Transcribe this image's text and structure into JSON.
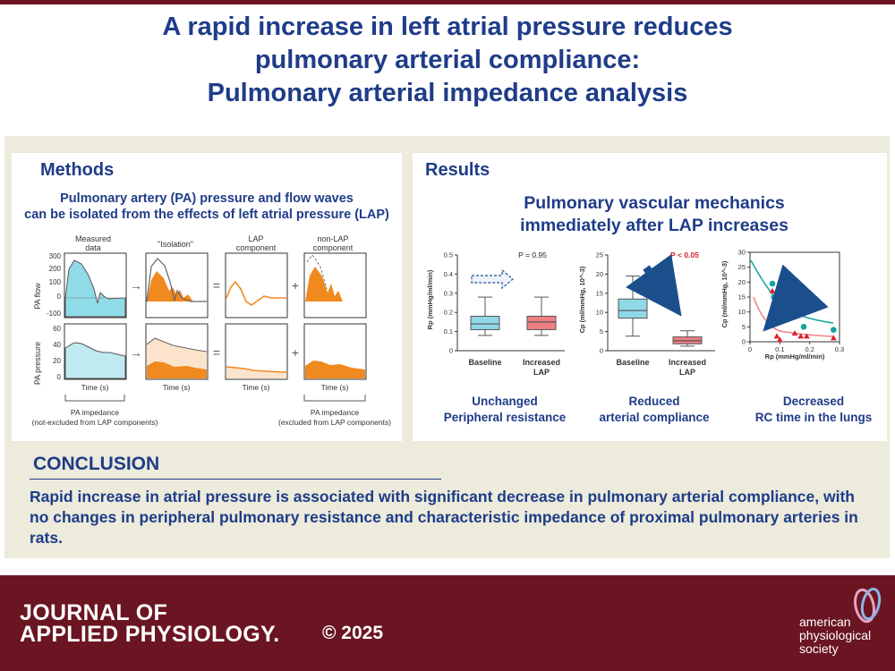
{
  "title": {
    "line1": "A rapid increase in left atrial pressure reduces",
    "line2": "pulmonary arterial compliance:",
    "line3": "Pulmonary arterial impedance analysis"
  },
  "methods": {
    "heading": "Methods",
    "subtitle_line1": "Pulmonary artery (PA) pressure and flow waves",
    "subtitle_line2": "can be isolated from the effects of left atrial pressure (LAP)",
    "col_measured_1": "Measured",
    "col_measured_2": "data",
    "col_isolation": "\"Isolation\"",
    "col_lap_1": "LAP",
    "col_lap_2": "component",
    "col_nonlap_1": "non-LAP",
    "col_nonlap_2": "component",
    "ylabel_flow": "PA flow",
    "ylabel_pressure": "PA pressure",
    "flow_ticks": [
      "300",
      "200",
      "100",
      "0",
      "-100"
    ],
    "pressure_ticks": [
      "60",
      "40",
      "20",
      "0"
    ],
    "xlabel": "Time (s)",
    "op_arrow": "→",
    "op_equals": "=",
    "op_plus": "+",
    "impedance_left_1": "PA impedance",
    "impedance_left_2": "(not-excluded from LAP components)",
    "impedance_right_1": "PA impedance",
    "impedance_right_2": "(excluded from LAP components)"
  },
  "results": {
    "heading": "Results",
    "subtitle_line1": "Pulmonary vascular mechanics",
    "subtitle_line2": "immediately after LAP increases",
    "chart1": {
      "p_label": "P = 0.95",
      "cat1": "Baseline",
      "cat2_1": "Increased",
      "cat2_2": "LAP",
      "caption_1": "Unchanged",
      "caption_2": "Peripheral resistance"
    },
    "chart2": {
      "p_label": "P < 0.05",
      "cat1": "Baseline",
      "cat2_1": "Increased",
      "cat2_2": "LAP",
      "caption_1": "Reduced",
      "caption_2": "arterial compliance"
    },
    "chart3": {
      "caption_1": "Decreased",
      "caption_2": "RC time in the lungs"
    }
  },
  "conclusion": {
    "heading": "CONCLUSION",
    "text": "Rapid increase in atrial pressure is associated with significant decrease in pulmonary arterial compliance, with no changes in peripheral pulmonary resistance and characteristic impedance of proximal pulmonary arteries in rats."
  },
  "footer": {
    "journal_1": "JOURNAL OF",
    "journal_2": "APPLIED PHYSIOLOGY.",
    "copyright": "© 2025",
    "aps_1": "american",
    "aps_2": "physiological",
    "aps_3": "society"
  },
  "colors": {
    "title": "#1f3c88",
    "burgundy": "#6b1522",
    "band": "#ecebdc",
    "baseline": "#8fd8e6",
    "increased": "#f07f84",
    "orange": "#f08a1e",
    "teal": "#13a3a0",
    "red": "#d8202a",
    "arrow": "#1a4f8c"
  },
  "chart_data": [
    {
      "type": "box",
      "title": "P = 0.95",
      "ylabel": "Rp (mmHg/ml/min)",
      "ylim": [
        0,
        0.5
      ],
      "yticks": [
        0,
        0.1,
        0.2,
        0.3,
        0.4,
        0.5
      ],
      "categories": [
        "Baseline",
        "Increased LAP"
      ],
      "boxes": [
        {
          "name": "Baseline",
          "min": 0.08,
          "q1": 0.11,
          "median": 0.14,
          "q3": 0.18,
          "max": 0.28
        },
        {
          "name": "Increased LAP",
          "min": 0.08,
          "q1": 0.11,
          "median": 0.15,
          "q3": 0.18,
          "max": 0.28
        }
      ]
    },
    {
      "type": "box",
      "title": "P < 0.05",
      "ylabel": "Cp (ml/mmHg, 10^-3)",
      "ylim": [
        0,
        25
      ],
      "yticks": [
        0,
        5,
        10,
        15,
        20,
        25
      ],
      "categories": [
        "Baseline",
        "Increased LAP"
      ],
      "boxes": [
        {
          "name": "Baseline",
          "min": 3.8,
          "q1": 8.5,
          "median": 10.5,
          "q3": 13.5,
          "max": 19.5
        },
        {
          "name": "Increased LAP",
          "min": 1.2,
          "q1": 1.8,
          "median": 2.6,
          "q3": 3.6,
          "max": 5.2
        }
      ]
    },
    {
      "type": "scatter",
      "xlabel": "Rp (mmHg/ml/min)",
      "ylabel": "Cp (ml/mmHg, 10^-3)",
      "xlim": [
        0,
        0.3
      ],
      "ylim": [
        0,
        30
      ],
      "xticks": [
        0,
        0.1,
        0.2,
        0.3
      ],
      "yticks": [
        0,
        5,
        10,
        15,
        20,
        25,
        30
      ],
      "series": [
        {
          "name": "Baseline",
          "marker": "circle",
          "points": [
            [
              0.075,
              19.5
            ],
            [
              0.08,
              15
            ],
            [
              0.1,
              12.5
            ],
            [
              0.13,
              9.5
            ],
            [
              0.15,
              9.8
            ],
            [
              0.17,
              10
            ],
            [
              0.18,
              5
            ],
            [
              0.28,
              4
            ]
          ]
        },
        {
          "name": "Increased LAP",
          "marker": "triangle",
          "points": [
            [
              0.075,
              17
            ],
            [
              0.09,
              1.8
            ],
            [
              0.1,
              0.6
            ],
            [
              0.15,
              2.8
            ],
            [
              0.17,
              1.8
            ],
            [
              0.19,
              1.8
            ],
            [
              0.28,
              1.2
            ]
          ]
        }
      ]
    }
  ]
}
